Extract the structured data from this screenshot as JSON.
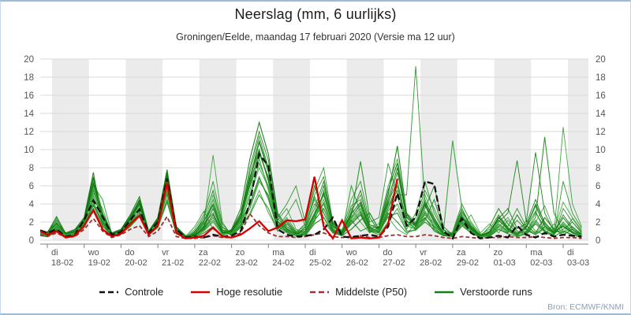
{
  "chart_data": {
    "type": "line",
    "title": "Neerslag (mm, 6 uurlijks)",
    "subtitle": "Groningen/Eelde, maandag 17 februari 2020 (Versie ma 12 uur)",
    "source": "Bron: ECMWF/KNMI",
    "ylim": [
      0,
      20
    ],
    "ytick_step": 2,
    "y_axis_side": "both",
    "grid": true,
    "time_step_hours": 6,
    "start_label": "ma 17-02 12 uur",
    "days": [
      {
        "weekday": "di",
        "date": "18-02"
      },
      {
        "weekday": "wo",
        "date": "19-02"
      },
      {
        "weekday": "do",
        "date": "20-02"
      },
      {
        "weekday": "vr",
        "date": "21-02"
      },
      {
        "weekday": "za",
        "date": "22-02"
      },
      {
        "weekday": "zo",
        "date": "23-02"
      },
      {
        "weekday": "ma",
        "date": "24-02"
      },
      {
        "weekday": "di",
        "date": "25-02"
      },
      {
        "weekday": "wo",
        "date": "26-02"
      },
      {
        "weekday": "do",
        "date": "27-02"
      },
      {
        "weekday": "vr",
        "date": "28-02"
      },
      {
        "weekday": "za",
        "date": "29-02"
      },
      {
        "weekday": "zo",
        "date": "01-03"
      },
      {
        "weekday": "ma",
        "date": "02-03"
      },
      {
        "weekday": "di",
        "date": "03-03"
      }
    ],
    "legend": [
      {
        "label": "Controle",
        "color": "#111111",
        "dashed": true
      },
      {
        "label": "Hoge resolutie",
        "color": "#d40000",
        "dashed": false
      },
      {
        "label": "Middelste (P50)",
        "color": "#9a3333",
        "dashed": true
      },
      {
        "label": "Verstoorde runs",
        "color": "#157f15",
        "dashed": false
      }
    ],
    "band_color": "#ebebeb",
    "grid_color": "#d9d9d9",
    "axis_color": "#808080",
    "member_colors": [
      "#1f8c1f",
      "#2fa12f",
      "#0d770d"
    ],
    "series": {
      "controle": [
        1.1,
        0.8,
        1.2,
        0.4,
        0.6,
        2.2,
        4.4,
        2.6,
        0.6,
        0.9,
        2.2,
        3.4,
        0.8,
        2.0,
        6.8,
        1.2,
        0.3,
        0.4,
        0.3,
        0.6,
        0.4,
        0.5,
        1.0,
        4.2,
        9.5,
        8.2,
        1.2,
        0.6,
        0.4,
        0.5,
        0.6,
        1.2,
        2.5,
        0.4,
        0.3,
        0.5,
        0.6,
        0.4,
        1.5,
        5.2,
        1.6,
        2.5,
        6.5,
        6.2,
        1.0,
        0.2,
        2.4,
        0.8,
        0.2,
        0.3,
        0.5,
        0.3,
        1.6,
        0.6,
        0.3,
        0.8,
        0.4,
        0.6,
        0.5,
        0.4
      ],
      "hoge_resolutie": [
        1.0,
        0.6,
        1.0,
        0.3,
        0.5,
        1.6,
        3.3,
        1.2,
        0.4,
        0.7,
        1.8,
        2.7,
        0.6,
        1.6,
        6.3,
        0.8,
        0.2,
        0.3,
        0.5,
        1.4,
        0.4,
        0.3,
        0.6,
        1.3,
        2.1,
        1.0,
        1.4,
        2.2,
        2.1,
        2.3,
        7.0,
        1.5,
        0.2,
        2.2,
        0.2,
        0.3,
        0.2,
        0.3,
        1.8,
        6.8
      ],
      "middelste_p50": [
        0.6,
        0.4,
        0.8,
        0.3,
        0.4,
        1.2,
        2.4,
        1.0,
        0.3,
        0.6,
        1.2,
        1.6,
        0.4,
        1.0,
        2.6,
        0.4,
        0.2,
        0.2,
        0.3,
        0.5,
        0.3,
        0.3,
        0.8,
        2.9,
        1.6,
        0.8,
        0.4,
        0.4,
        0.3,
        0.4,
        0.6,
        0.8,
        0.4,
        0.3,
        0.4,
        0.5,
        0.3,
        0.3,
        0.5,
        0.6,
        0.4,
        0.4,
        0.6,
        0.5,
        0.3,
        0.2,
        0.4,
        0.3,
        0.2,
        0.3,
        0.3,
        0.4,
        0.3,
        0.3,
        0.4,
        0.3,
        0.2,
        0.3,
        0.3,
        0.2
      ],
      "verstoorde_runs": [
        [
          0.9,
          0.7,
          1.8,
          0.6,
          0.9,
          2.2,
          6.8,
          2.0,
          0.7,
          1.1,
          2.4,
          4.2,
          0.9,
          2.2,
          7.2,
          1.2,
          0.4,
          0.6,
          1.2,
          2.5,
          0.8,
          0.9,
          2.2,
          6.5,
          10.8,
          7.5,
          2.0,
          1.0,
          0.6,
          0.8,
          2.5,
          4.0,
          1.2,
          0.6,
          2.2,
          1.0,
          1.5,
          0.8,
          3.5,
          6.0,
          2.2,
          1.2,
          3.0,
          1.5,
          0.8,
          0.5,
          2.2,
          1.0,
          0.4,
          0.8,
          2.6,
          1.2,
          0.5,
          1.4,
          3.2,
          1.0,
          0.6,
          1.8,
          0.9,
          0.5
        ],
        [
          0.6,
          0.5,
          2.4,
          0.4,
          0.6,
          1.8,
          5.2,
          3.5,
          0.5,
          0.8,
          1.8,
          3.0,
          0.6,
          1.6,
          5.0,
          0.8,
          0.3,
          0.8,
          2.0,
          9.4,
          2.0,
          0.5,
          1.5,
          3.0,
          5.5,
          3.0,
          1.2,
          2.5,
          1.0,
          1.5,
          4.5,
          2.0,
          0.8,
          1.2,
          3.5,
          2.0,
          0.8,
          1.5,
          2.5,
          1.2,
          0.6,
          2.0,
          4.5,
          2.0,
          0.6,
          0.4,
          1.5,
          2.8,
          0.8,
          1.8,
          0.8,
          2.2,
          1.0,
          0.5,
          2.0,
          3.8,
          1.2,
          0.8,
          2.4,
          1.0
        ],
        [
          1.1,
          0.9,
          1.2,
          0.8,
          1.2,
          2.5,
          7.5,
          1.5,
          0.8,
          1.2,
          2.8,
          4.8,
          1.0,
          2.5,
          7.8,
          1.5,
          0.5,
          0.4,
          0.8,
          1.5,
          0.5,
          1.2,
          3.5,
          9.0,
          13.0,
          9.5,
          3.0,
          1.5,
          0.8,
          0.5,
          1.8,
          2.5,
          0.8,
          0.5,
          1.2,
          2.2,
          3.0,
          1.2,
          5.0,
          10.4,
          3.0,
          1.5,
          2.5,
          1.0,
          0.5,
          0.8,
          3.5,
          1.5,
          0.6,
          0.4,
          1.2,
          0.8,
          2.8,
          1.2,
          0.6,
          1.5,
          0.8,
          2.5,
          1.2,
          0.6
        ],
        [
          0.7,
          0.6,
          1.5,
          0.5,
          0.7,
          2.0,
          4.5,
          2.8,
          0.6,
          0.9,
          2.0,
          3.5,
          0.8,
          1.8,
          6.0,
          1.0,
          0.4,
          1.5,
          3.2,
          1.2,
          0.6,
          0.8,
          2.5,
          7.5,
          11.5,
          8.0,
          2.5,
          4.0,
          6.0,
          2.0,
          5.5,
          8.0,
          2.0,
          1.0,
          4.5,
          6.5,
          2.0,
          2.5,
          8.5,
          5.0,
          5.0,
          19.2,
          4.0,
          1.2,
          0.6,
          0.5,
          3.0,
          1.8,
          0.5,
          1.0,
          2.5,
          1.5,
          3.5,
          1.5,
          4.0,
          2.0,
          0.8,
          1.2,
          2.0,
          0.8
        ],
        [
          0.8,
          0.7,
          2.0,
          0.5,
          0.8,
          2.2,
          6.0,
          4.5,
          0.7,
          1.0,
          2.2,
          4.0,
          0.9,
          2.0,
          7.0,
          1.2,
          0.3,
          0.5,
          1.5,
          4.5,
          1.0,
          0.6,
          1.8,
          5.0,
          8.5,
          6.0,
          1.5,
          0.8,
          0.5,
          0.6,
          2.0,
          5.5,
          1.5,
          0.8,
          6.0,
          3.0,
          1.0,
          0.6,
          2.0,
          3.5,
          1.2,
          3.0,
          6.5,
          3.0,
          1.0,
          11.0,
          3.5,
          1.2,
          0.4,
          0.6,
          1.8,
          1.0,
          0.5,
          2.2,
          1.0,
          0.6,
          1.8,
          0.8,
          1.5,
          0.6
        ],
        [
          1.0,
          0.8,
          1.4,
          0.7,
          1.0,
          2.0,
          5.5,
          2.2,
          0.6,
          1.1,
          2.5,
          4.5,
          0.8,
          2.2,
          6.5,
          1.0,
          0.4,
          0.7,
          1.8,
          3.0,
          0.8,
          1.0,
          2.8,
          8.0,
          12.0,
          8.8,
          2.8,
          1.2,
          0.7,
          1.0,
          3.0,
          6.0,
          1.8,
          0.7,
          2.5,
          4.0,
          1.2,
          1.0,
          4.0,
          7.5,
          2.5,
          1.5,
          3.5,
          6.0,
          1.5,
          0.6,
          2.5,
          1.2,
          0.5,
          0.7,
          2.0,
          3.0,
          8.8,
          2.0,
          9.7,
          3.0,
          1.0,
          1.5,
          0.8,
          0.4
        ],
        [
          0.5,
          0.4,
          1.0,
          0.4,
          0.5,
          1.5,
          3.8,
          1.8,
          0.5,
          0.8,
          1.6,
          2.8,
          0.6,
          1.5,
          4.5,
          0.8,
          0.3,
          0.9,
          2.5,
          5.5,
          1.5,
          0.7,
          2.0,
          4.0,
          7.0,
          4.5,
          1.2,
          2.0,
          0.8,
          1.8,
          6.0,
          3.0,
          1.0,
          0.6,
          2.8,
          8.7,
          2.5,
          1.0,
          3.0,
          2.0,
          0.8,
          1.2,
          2.2,
          4.5,
          1.2,
          0.5,
          1.8,
          0.8,
          0.4,
          1.5,
          3.5,
          1.8,
          0.8,
          1.0,
          2.5,
          11.4,
          3.0,
          1.0,
          0.6,
          0.3
        ],
        [
          0.7,
          0.6,
          1.6,
          0.5,
          0.7,
          1.9,
          4.8,
          2.5,
          0.6,
          0.9,
          2.1,
          3.8,
          0.7,
          1.9,
          5.5,
          1.0,
          0.3,
          0.4,
          1.0,
          2.0,
          0.6,
          0.8,
          2.2,
          5.5,
          9.5,
          7.0,
          2.2,
          3.5,
          1.2,
          0.8,
          2.8,
          4.5,
          1.4,
          0.9,
          3.2,
          5.0,
          1.5,
          1.8,
          6.0,
          9.0,
          3.0,
          2.0,
          5.0,
          2.5,
          0.8,
          0.5,
          2.0,
          1.0,
          0.4,
          0.6,
          1.5,
          2.5,
          1.0,
          0.8,
          3.0,
          1.5,
          0.6,
          12.5,
          4.0,
          1.5
        ],
        [
          0.9,
          0.8,
          2.6,
          0.7,
          0.9,
          2.4,
          7.0,
          3.0,
          0.8,
          1.2,
          2.6,
          4.4,
          1.0,
          2.4,
          7.5,
          1.4,
          0.5,
          0.6,
          1.4,
          3.5,
          0.9,
          1.1,
          3.0,
          7.0,
          10.0,
          6.5,
          1.8,
          1.0,
          0.6,
          0.7,
          2.2,
          3.5,
          1.1,
          0.6,
          1.8,
          2.8,
          0.9,
          1.4,
          4.5,
          8.0,
          2.8,
          1.8,
          4.0,
          2.0,
          0.7,
          0.5,
          2.8,
          1.4,
          0.5,
          0.9,
          2.2,
          1.2,
          0.6,
          1.6,
          0.8,
          2.5,
          1.2,
          0.6,
          1.2,
          0.5
        ],
        [
          0.6,
          0.5,
          1.2,
          0.4,
          0.6,
          1.7,
          4.2,
          2.0,
          0.5,
          0.8,
          1.9,
          3.2,
          0.7,
          1.7,
          5.8,
          0.9,
          0.3,
          1.2,
          2.8,
          6.5,
          1.8,
          0.6,
          1.6,
          3.5,
          6.5,
          5.0,
          1.4,
          2.8,
          4.5,
          1.5,
          5.0,
          7.0,
          1.8,
          0.8,
          3.8,
          4.5,
          1.4,
          0.9,
          2.8,
          4.0,
          1.5,
          2.5,
          5.5,
          3.5,
          1.1,
          0.7,
          3.2,
          1.6,
          0.6,
          1.2,
          2.8,
          1.4,
          0.7,
          0.9,
          2.2,
          1.1,
          0.5,
          3.5,
          2.0,
          0.9
        ],
        [
          0.8,
          0.7,
          1.7,
          0.6,
          0.8,
          2.1,
          5.8,
          2.4,
          0.7,
          1.0,
          2.3,
          4.1,
          0.9,
          2.1,
          6.8,
          1.1,
          0.4,
          0.5,
          1.1,
          2.2,
          0.7,
          0.9,
          2.4,
          6.0,
          9.0,
          5.5,
          1.6,
          0.9,
          0.5,
          0.9,
          2.6,
          5.0,
          1.6,
          0.7,
          2.4,
          3.5,
          1.1,
          1.1,
          3.5,
          5.5,
          1.8,
          1.4,
          3.2,
          1.8,
          0.6,
          0.9,
          4.0,
          2.0,
          0.7,
          0.5,
          1.4,
          0.9,
          2.2,
          1.1,
          0.6,
          1.3,
          0.7,
          2.0,
          1.0,
          0.5
        ],
        [
          1.0,
          0.9,
          2.2,
          0.8,
          1.1,
          2.3,
          6.4,
          2.7,
          0.7,
          1.1,
          2.4,
          4.3,
          0.9,
          2.3,
          7.4,
          1.3,
          0.4,
          0.7,
          1.6,
          4.0,
          1.1,
          1.0,
          2.6,
          6.8,
          11.0,
          7.8,
          2.4,
          1.3,
          0.7,
          1.2,
          3.5,
          6.5,
          1.9,
          0.9,
          3.0,
          5.5,
          1.7,
          1.3,
          4.2,
          6.5,
          2.1,
          1.6,
          3.8,
          2.2,
          0.8,
          0.6,
          2.4,
          1.2,
          0.5,
          0.8,
          2.4,
          3.5,
          1.3,
          1.8,
          4.5,
          1.8,
          0.9,
          2.8,
          1.4,
          0.7
        ],
        [
          0.5,
          0.4,
          0.9,
          0.3,
          0.5,
          1.4,
          3.5,
          1.6,
          0.4,
          0.7,
          1.5,
          2.6,
          0.6,
          1.4,
          4.2,
          0.7,
          0.2,
          1.0,
          2.2,
          4.0,
          1.2,
          0.5,
          1.4,
          2.8,
          5.0,
          3.5,
          1.0,
          1.8,
          0.7,
          1.4,
          4.8,
          2.5,
          0.9,
          0.5,
          2.0,
          3.0,
          1.0,
          0.8,
          2.6,
          3.0,
          1.0,
          1.1,
          2.0,
          1.2,
          0.5,
          0.4,
          1.6,
          0.8,
          0.3,
          0.5,
          1.2,
          0.7,
          0.4,
          0.7,
          1.8,
          0.9,
          0.4,
          1.0,
          0.6,
          0.3
        ],
        [
          0.7,
          0.6,
          1.3,
          0.5,
          0.7,
          1.8,
          5.0,
          2.1,
          0.6,
          0.9,
          2.0,
          3.6,
          0.8,
          1.8,
          6.2,
          1.0,
          0.3,
          0.8,
          1.9,
          5.0,
          1.4,
          0.7,
          2.1,
          4.8,
          8.0,
          5.8,
          1.7,
          1.1,
          0.6,
          0.8,
          2.4,
          4.2,
          1.3,
          0.7,
          2.6,
          3.8,
          1.2,
          1.2,
          3.8,
          6.0,
          2.0,
          1.3,
          2.8,
          1.6,
          0.6,
          0.5,
          2.1,
          1.1,
          0.4,
          0.7,
          1.8,
          1.1,
          0.6,
          1.3,
          0.7,
          1.9,
          1.0,
          4.2,
          2.5,
          1.1
        ],
        [
          0.9,
          0.8,
          1.9,
          0.7,
          1.0,
          2.1,
          6.2,
          2.6,
          0.7,
          1.0,
          2.3,
          4.0,
          0.9,
          2.1,
          7.0,
          1.2,
          0.4,
          0.5,
          1.3,
          2.8,
          0.8,
          0.9,
          2.5,
          6.2,
          9.8,
          6.8,
          2.1,
          1.2,
          0.7,
          1.0,
          2.8,
          5.2,
          1.6,
          0.8,
          2.9,
          4.2,
          1.3,
          1.5,
          5.5,
          8.5,
          2.6,
          1.7,
          4.2,
          2.4,
          0.8,
          0.6,
          2.6,
          1.3,
          0.5,
          0.9,
          2.5,
          1.3,
          0.7,
          1.5,
          3.8,
          1.6,
          0.8,
          1.6,
          0.8,
          0.4
        ],
        [
          0.6,
          0.5,
          1.1,
          0.4,
          0.6,
          1.6,
          4.0,
          1.9,
          0.5,
          0.8,
          1.8,
          3.0,
          0.7,
          1.6,
          5.2,
          0.9,
          0.3,
          0.9,
          2.1,
          3.8,
          1.0,
          0.6,
          1.7,
          3.8,
          6.8,
          4.8,
          1.3,
          2.2,
          0.9,
          1.2,
          4.0,
          3.0,
          1.0,
          0.6,
          2.2,
          3.2,
          1.1,
          0.9,
          3.2,
          4.8,
          1.6,
          1.2,
          2.4,
          1.4,
          0.5,
          0.5,
          1.9,
          1.0,
          0.4,
          0.6,
          1.6,
          1.0,
          0.5,
          0.8,
          2.0,
          1.0,
          0.5,
          6.5,
          3.0,
          1.3
        ]
      ]
    }
  }
}
